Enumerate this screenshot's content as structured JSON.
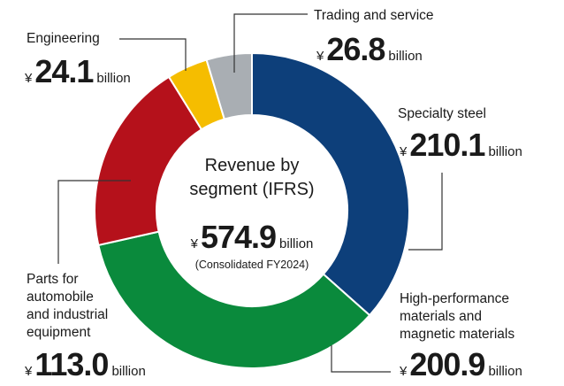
{
  "chart_data": {
    "type": "donut",
    "title": [
      "Revenue by",
      "segment (IFRS)"
    ],
    "total": 574.9,
    "subtitle": "(Consolidated FY2024)",
    "currency": "¥",
    "unit": "billion",
    "categories": [
      [
        "Specialty steel"
      ],
      [
        "High-performance",
        "materials and",
        "magnetic materials"
      ],
      [
        "Parts for",
        "automobile",
        "and industrial",
        "equipment"
      ],
      [
        "Engineering"
      ],
      [
        "Trading and service"
      ]
    ],
    "values": [
      210.1,
      200.9,
      113.0,
      24.1,
      26.8
    ],
    "value_labels": [
      "210.1",
      "200.9",
      "113.0",
      "24.1",
      "26.8"
    ],
    "colors": [
      "#0d3f7a",
      "#0a8a3c",
      "#b5111b",
      "#f5bd00",
      "#a9aeb3"
    ]
  }
}
